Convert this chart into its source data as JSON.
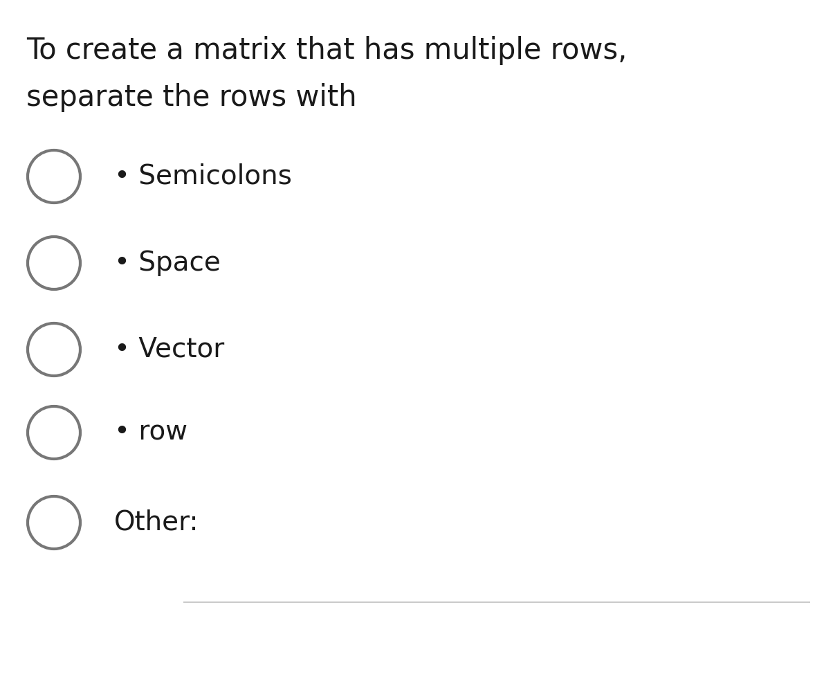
{
  "background_color": "#ffffff",
  "question_line1": "To create a matrix that has multiple rows,",
  "question_line2": "separate the rows with",
  "question_fontsize": 30,
  "options": [
    {
      "label": "• Semicolons"
    },
    {
      "label": "• Space"
    },
    {
      "label": "• Vector"
    },
    {
      "label": "• row"
    },
    {
      "label": "Other:"
    }
  ],
  "option_fontsize": 28,
  "circle_color": "#777777",
  "circle_linewidth": 3.0,
  "text_color": "#1a1a1a",
  "line_color": "#c0c0c0",
  "fig_width": 11.91,
  "fig_height": 9.81,
  "dpi": 100
}
